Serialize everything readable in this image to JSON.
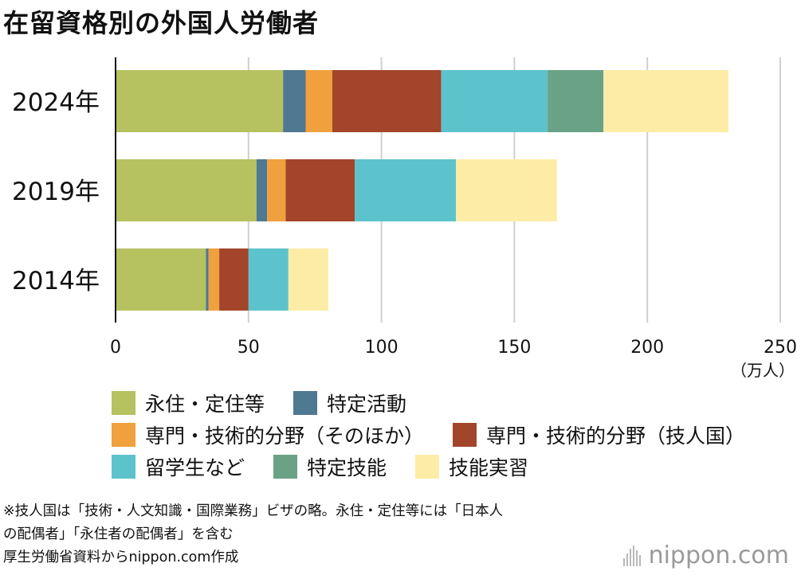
{
  "title": "在留資格別の外国人労働者",
  "chart_data": {
    "type": "bar",
    "orientation": "horizontal",
    "stacked": true,
    "categories": [
      "2024年",
      "2019年",
      "2014年"
    ],
    "series": [
      {
        "name": "永住・定住等",
        "color": "#b6c160",
        "values": [
          63,
          53,
          34
        ]
      },
      {
        "name": "特定活動",
        "color": "#4f7891",
        "values": [
          8.5,
          4,
          1
        ]
      },
      {
        "name": "専門・技術的分野（そのほか）",
        "color": "#f0a03c",
        "values": [
          10,
          7,
          4
        ]
      },
      {
        "name": "専門・技術的分野（技人国）",
        "color": "#a2452a",
        "values": [
          41,
          26,
          11
        ]
      },
      {
        "name": "留学生など",
        "color": "#5cc3cc",
        "values": [
          40,
          38,
          15
        ]
      },
      {
        "name": "特定技能",
        "color": "#6aa286",
        "values": [
          21,
          0,
          0
        ]
      },
      {
        "name": "技能実習",
        "color": "#fdeca6",
        "values": [
          47,
          38,
          15
        ]
      }
    ],
    "xlim": [
      0,
      250
    ],
    "xticks": [
      "0",
      "50",
      "100",
      "150",
      "200",
      "250"
    ],
    "unit_label": "（万人）",
    "grid": true
  },
  "legend_rows": [
    [
      0,
      1
    ],
    [
      2,
      3
    ],
    [
      4,
      5,
      6
    ]
  ],
  "note": {
    "line1": "※技人国は「技術・人文知識・国際業務」ビザの略。永住・定住等には「日本人",
    "line2": "の配偶者」「永住者の配偶者」を含む",
    "line3": "厚生労働省資料からnippon.com作成"
  },
  "brand": "nippon.com"
}
